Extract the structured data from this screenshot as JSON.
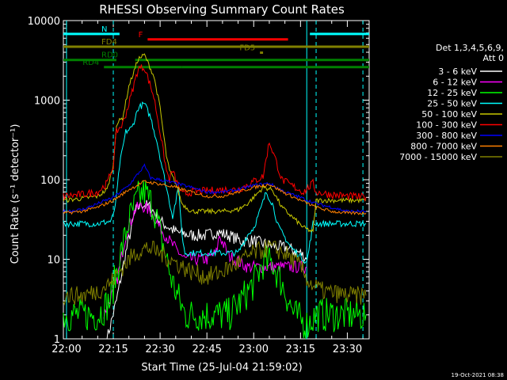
{
  "chart_data": {
    "type": "line",
    "title": "RHESSI Observing Summary Count Rates",
    "xlabel": "Start Time (25-Jul-04 21:59:02)",
    "ylabel": "Count Rate (s⁻¹ detector⁻¹)",
    "y_scale": "log",
    "ylim": [
      1,
      10000
    ],
    "xlim": [
      "21:59",
      "23:37"
    ],
    "x_ticks": [
      "22:00",
      "22:15",
      "22:30",
      "22:45",
      "23:00",
      "23:15",
      "23:30"
    ],
    "y_ticks": [
      "1",
      "10",
      "100",
      "1000",
      "10000"
    ],
    "timestamp": "19-Oct-2021 08:38",
    "legend": {
      "position": "right",
      "header": [
        "Det 1,3,4,5,6,9,",
        "Att 0"
      ]
    },
    "flags": [
      {
        "label": "N",
        "color": "#00ffff",
        "segments": [
          [
            "21:59",
            "22:17"
          ],
          [
            "23:18",
            "23:37"
          ]
        ],
        "y": 6800
      },
      {
        "label": "F",
        "color": "#ff0000",
        "segments": [
          [
            "22:26",
            "23:11"
          ]
        ],
        "y": 5800
      },
      {
        "label": "FD4",
        "color": "#808000",
        "segments": [
          [
            "21:59",
            "23:37"
          ]
        ],
        "y": 4700
      },
      {
        "label": "FD5",
        "color": "#808000",
        "segments": [
          [
            "23:02",
            "23:03"
          ]
        ],
        "y": 3950
      },
      {
        "label": "RD0",
        "color": "#008000",
        "segments": [
          [
            "21:59",
            "22:16"
          ],
          [
            "22:22",
            "23:37"
          ]
        ],
        "y": 3200
      },
      {
        "label": "RD4",
        "color": "#008000",
        "segments": [
          [
            "22:12",
            "22:37"
          ],
          [
            "22:37",
            "23:20"
          ],
          [
            "23:20",
            "23:37"
          ]
        ],
        "y": 2600
      }
    ],
    "vlines": [
      {
        "t": "22:00",
        "color": "#00ffff",
        "style": "solid"
      },
      {
        "t": "22:15",
        "color": "#00ffff",
        "style": "dashed"
      },
      {
        "t": "23:17",
        "color": "#00ffff",
        "style": "solid"
      },
      {
        "t": "23:20",
        "color": "#00ffff",
        "style": "dashed"
      },
      {
        "t": "23:35",
        "color": "#00ffff",
        "style": "dashed"
      }
    ],
    "series": [
      {
        "name": "3 - 6 keV",
        "color": "#ffffff",
        "noise": 0.08,
        "points": [
          [
            "22:13",
            1
          ],
          [
            "22:16",
            3
          ],
          [
            "22:19",
            12
          ],
          [
            "22:22",
            40
          ],
          [
            "22:24",
            50
          ],
          [
            "22:27",
            45
          ],
          [
            "22:30",
            30
          ],
          [
            "22:35",
            22
          ],
          [
            "22:40",
            20
          ],
          [
            "22:45",
            20
          ],
          [
            "22:48",
            22
          ],
          [
            "22:52",
            20
          ],
          [
            "22:56",
            17
          ],
          [
            "23:00",
            17
          ],
          [
            "23:05",
            15
          ],
          [
            "23:10",
            14
          ],
          [
            "23:15",
            12
          ],
          [
            "23:17",
            10
          ]
        ]
      },
      {
        "name": "6 - 12 keV",
        "color": "#ff00ff",
        "noise": 0.08,
        "points": [
          [
            "22:12",
            2
          ],
          [
            "22:16",
            5
          ],
          [
            "22:19",
            20
          ],
          [
            "22:22",
            42
          ],
          [
            "22:24",
            48
          ],
          [
            "22:27",
            40
          ],
          [
            "22:30",
            25
          ],
          [
            "22:34",
            15
          ],
          [
            "22:38",
            10
          ],
          [
            "22:45",
            10
          ],
          [
            "22:48",
            12
          ],
          [
            "22:49",
            20
          ],
          [
            "22:52",
            11
          ],
          [
            "22:58",
            8
          ],
          [
            "23:05",
            8
          ],
          [
            "23:10",
            8
          ],
          [
            "23:15",
            8
          ],
          [
            "23:17",
            8
          ]
        ]
      },
      {
        "name": "12 - 25 keV",
        "color": "#00ff00",
        "noise": 0.22,
        "points": [
          [
            "21:59",
            2
          ],
          [
            "22:05",
            2
          ],
          [
            "22:10",
            2
          ],
          [
            "22:14",
            3
          ],
          [
            "22:17",
            10
          ],
          [
            "22:20",
            30
          ],
          [
            "22:23",
            60
          ],
          [
            "22:25",
            70
          ],
          [
            "22:28",
            45
          ],
          [
            "22:31",
            15
          ],
          [
            "22:34",
            5
          ],
          [
            "22:38",
            2
          ],
          [
            "22:45",
            2
          ],
          [
            "22:52",
            2
          ],
          [
            "22:56",
            3
          ],
          [
            "23:00",
            5
          ],
          [
            "23:03",
            9
          ],
          [
            "23:06",
            9
          ],
          [
            "23:09",
            5
          ],
          [
            "23:13",
            2
          ],
          [
            "23:17",
            1.5
          ],
          [
            "23:20",
            2
          ],
          [
            "23:25",
            2
          ],
          [
            "23:30",
            2
          ],
          [
            "23:36",
            2
          ]
        ]
      },
      {
        "name": "25 - 50 keV",
        "color": "#00ffff",
        "noise": 0.04,
        "points": [
          [
            "21:59",
            28
          ],
          [
            "22:05",
            28
          ],
          [
            "22:10",
            28
          ],
          [
            "22:14",
            30
          ],
          [
            "22:15",
            35
          ],
          [
            "22:16",
            60
          ],
          [
            "22:17",
            150
          ],
          [
            "22:19",
            400
          ],
          [
            "22:21",
            450
          ],
          [
            "22:23",
            800
          ],
          [
            "22:25",
            900
          ],
          [
            "22:27",
            600
          ],
          [
            "22:29",
            300
          ],
          [
            "22:32",
            80
          ],
          [
            "22:34",
            35
          ],
          [
            "22:36",
            80
          ],
          [
            "22:37",
            20
          ],
          [
            "22:38",
            12
          ],
          [
            "22:40",
            12
          ],
          [
            "22:50",
            12
          ],
          [
            "22:55",
            12
          ],
          [
            "22:58",
            20
          ],
          [
            "23:00",
            25
          ],
          [
            "23:02",
            40
          ],
          [
            "23:04",
            70
          ],
          [
            "23:06",
            50
          ],
          [
            "23:08",
            25
          ],
          [
            "23:12",
            14
          ],
          [
            "23:16",
            10
          ],
          [
            "23:17",
            9
          ],
          [
            "23:19",
            28
          ],
          [
            "23:25",
            28
          ],
          [
            "23:30",
            28
          ],
          [
            "23:36",
            28
          ]
        ]
      },
      {
        "name": "50 - 100 keV",
        "color": "#c8c800",
        "noise": 0.03,
        "points": [
          [
            "21:59",
            55
          ],
          [
            "22:05",
            58
          ],
          [
            "22:10",
            62
          ],
          [
            "22:13",
            75
          ],
          [
            "22:15",
            150
          ],
          [
            "22:16",
            500
          ],
          [
            "22:18",
            600
          ],
          [
            "22:20",
            1500
          ],
          [
            "22:23",
            3300
          ],
          [
            "22:25",
            3700
          ],
          [
            "22:28",
            2000
          ],
          [
            "22:30",
            800
          ],
          [
            "22:32",
            200
          ],
          [
            "22:33",
            130
          ],
          [
            "22:35",
            90
          ],
          [
            "22:37",
            50
          ],
          [
            "22:40",
            40
          ],
          [
            "22:50",
            40
          ],
          [
            "22:55",
            42
          ],
          [
            "22:58",
            50
          ],
          [
            "23:00",
            60
          ],
          [
            "23:03",
            80
          ],
          [
            "23:06",
            75
          ],
          [
            "23:09",
            45
          ],
          [
            "23:12",
            35
          ],
          [
            "23:16",
            25
          ],
          [
            "23:19",
            22
          ],
          [
            "23:20",
            55
          ],
          [
            "23:25",
            55
          ],
          [
            "23:30",
            55
          ],
          [
            "23:36",
            55
          ]
        ]
      },
      {
        "name": "100 - 300 keV",
        "color": "#ff0000",
        "noise": 0.05,
        "points": [
          [
            "21:59",
            62
          ],
          [
            "22:05",
            65
          ],
          [
            "22:10",
            70
          ],
          [
            "22:13",
            90
          ],
          [
            "22:15",
            150
          ],
          [
            "22:16",
            400
          ],
          [
            "22:18",
            500
          ],
          [
            "22:20",
            900
          ],
          [
            "22:23",
            2500
          ],
          [
            "22:25",
            2600
          ],
          [
            "22:28",
            1100
          ],
          [
            "22:30",
            400
          ],
          [
            "22:32",
            130
          ],
          [
            "22:33",
            100
          ],
          [
            "22:34",
            130
          ],
          [
            "22:35",
            100
          ],
          [
            "22:37",
            65
          ],
          [
            "22:40",
            70
          ],
          [
            "22:50",
            75
          ],
          [
            "22:55",
            75
          ],
          [
            "23:00",
            95
          ],
          [
            "23:03",
            110
          ],
          [
            "23:05",
            300
          ],
          [
            "23:07",
            180
          ],
          [
            "23:09",
            100
          ],
          [
            "23:12",
            85
          ],
          [
            "23:16",
            70
          ],
          [
            "23:19",
            90
          ],
          [
            "23:20",
            70
          ],
          [
            "23:25",
            65
          ],
          [
            "23:30",
            62
          ],
          [
            "23:36",
            60
          ]
        ]
      },
      {
        "name": "300 - 800 keV",
        "color": "#0000ff",
        "noise": 0.02,
        "points": [
          [
            "21:59",
            40
          ],
          [
            "22:05",
            42
          ],
          [
            "22:10",
            50
          ],
          [
            "22:15",
            60
          ],
          [
            "22:20",
            85
          ],
          [
            "22:23",
            120
          ],
          [
            "22:25",
            150
          ],
          [
            "22:27",
            105
          ],
          [
            "22:30",
            100
          ],
          [
            "22:35",
            90
          ],
          [
            "22:40",
            80
          ],
          [
            "22:45",
            70
          ],
          [
            "22:50",
            70
          ],
          [
            "22:55",
            75
          ],
          [
            "23:00",
            85
          ],
          [
            "23:05",
            90
          ],
          [
            "23:10",
            70
          ],
          [
            "23:15",
            60
          ],
          [
            "23:20",
            50
          ],
          [
            "23:25",
            45
          ],
          [
            "23:30",
            40
          ],
          [
            "23:36",
            40
          ]
        ]
      },
      {
        "name": "800 - 7000 keV",
        "color": "#ff8000",
        "noise": 0.02,
        "points": [
          [
            "21:59",
            38
          ],
          [
            "22:05",
            40
          ],
          [
            "22:10",
            45
          ],
          [
            "22:15",
            55
          ],
          [
            "22:20",
            75
          ],
          [
            "22:25",
            95
          ],
          [
            "22:30",
            88
          ],
          [
            "22:35",
            80
          ],
          [
            "22:40",
            70
          ],
          [
            "22:45",
            62
          ],
          [
            "22:50",
            62
          ],
          [
            "22:55",
            70
          ],
          [
            "23:00",
            80
          ],
          [
            "23:05",
            88
          ],
          [
            "23:10",
            68
          ],
          [
            "23:15",
            55
          ],
          [
            "23:20",
            45
          ],
          [
            "23:25",
            40
          ],
          [
            "23:30",
            38
          ],
          [
            "23:36",
            38
          ]
        ]
      },
      {
        "name": "7000 - 15000 keV",
        "color": "#808000",
        "noise": 0.12,
        "points": [
          [
            "21:59",
            3.5
          ],
          [
            "22:05",
            3.5
          ],
          [
            "22:10",
            4
          ],
          [
            "22:14",
            5
          ],
          [
            "22:18",
            8
          ],
          [
            "22:22",
            12
          ],
          [
            "22:26",
            14
          ],
          [
            "22:30",
            12
          ],
          [
            "22:35",
            9
          ],
          [
            "22:40",
            7
          ],
          [
            "22:45",
            6
          ],
          [
            "22:50",
            7
          ],
          [
            "22:55",
            9
          ],
          [
            "23:00",
            12
          ],
          [
            "23:05",
            14
          ],
          [
            "23:10",
            12
          ],
          [
            "23:15",
            8
          ],
          [
            "23:18",
            5
          ],
          [
            "23:22",
            4
          ],
          [
            "23:30",
            3.5
          ],
          [
            "23:36",
            3.5
          ]
        ]
      }
    ]
  }
}
